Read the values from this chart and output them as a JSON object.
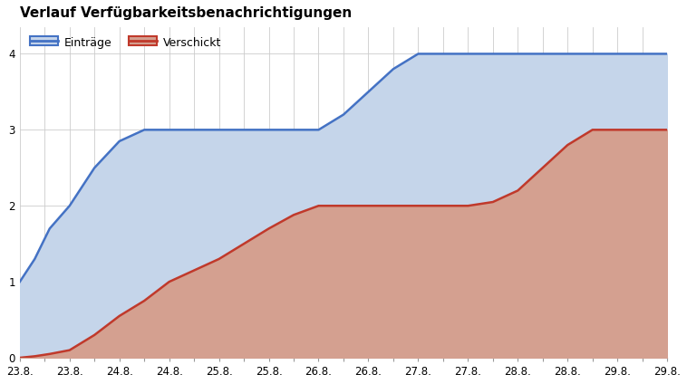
{
  "title": "Verlauf Verfügbarkeitsbenachrichtigungen",
  "series": {
    "Einträge": {
      "x": [
        0,
        0.3,
        0.6,
        1.0,
        1.5,
        2.0,
        2.5,
        3.0,
        3.5,
        4.0,
        4.5,
        5.0,
        5.5,
        6.0,
        6.5,
        7.0,
        7.5,
        8.0,
        8.5,
        9.0,
        9.5,
        10.0,
        10.5,
        11.0,
        11.5,
        12.0,
        12.5,
        13.0
      ],
      "y": [
        1,
        1.3,
        1.7,
        2.0,
        2.5,
        2.85,
        3.0,
        3.0,
        3.0,
        3.0,
        3.0,
        3.0,
        3.0,
        3.0,
        3.2,
        3.5,
        3.8,
        4.0,
        4.0,
        4.0,
        4.0,
        4.0,
        4.0,
        4.0,
        4.0,
        4.0,
        4.0,
        4.0
      ],
      "fill_color": "#c5d5ea",
      "line_color": "#4472c4",
      "line_width": 1.8
    },
    "Verschickt": {
      "x": [
        0,
        0.3,
        0.6,
        1.0,
        1.5,
        2.0,
        2.5,
        3.0,
        3.5,
        4.0,
        4.5,
        5.0,
        5.5,
        6.0,
        6.5,
        7.0,
        7.5,
        8.0,
        8.5,
        9.0,
        9.5,
        10.0,
        10.5,
        11.0,
        11.5,
        12.0,
        12.5,
        13.0
      ],
      "y": [
        0,
        0.02,
        0.05,
        0.1,
        0.3,
        0.55,
        0.75,
        1.0,
        1.15,
        1.3,
        1.5,
        1.7,
        1.88,
        2.0,
        2.0,
        2.0,
        2.0,
        2.0,
        2.0,
        2.0,
        2.05,
        2.2,
        2.5,
        2.8,
        3.0,
        3.0,
        3.0,
        3.0
      ],
      "fill_color": "#d4a090",
      "line_color": "#c0392b",
      "line_width": 1.8
    }
  },
  "xtick_positions": [
    0,
    0.5,
    1.0,
    1.5,
    2.0,
    2.5,
    3.0,
    3.5,
    4.0,
    4.5,
    5.0,
    5.5,
    6.0,
    6.5,
    7.0,
    7.5,
    8.0,
    8.5,
    9.0,
    9.5,
    10.0,
    10.5,
    11.0,
    11.5,
    12.0,
    12.5,
    13.0
  ],
  "xtick_labels": [
    "23.8.",
    "23.8.",
    "23.8.",
    "23.8.",
    "24.8.",
    "24.8.",
    "24.8.",
    "24.8.",
    "25.8.",
    "25.8.",
    "25.8.",
    "25.8.",
    "26.8.",
    "26.8.",
    "26.8.",
    "26.8.",
    "27.8.",
    "27.8.",
    "27.8.",
    "27.8.",
    "28.8.",
    "28.8.",
    "28.8.",
    "28.8.",
    "29.8.",
    "29.8.",
    "29.8."
  ],
  "xtick_show": [
    true,
    false,
    true,
    false,
    true,
    false,
    true,
    false,
    true,
    false,
    true,
    false,
    true,
    false,
    true,
    false,
    true,
    false,
    true,
    false,
    true,
    false,
    true,
    false,
    true,
    false,
    true
  ],
  "ylim": [
    0,
    4.35
  ],
  "yticks": [
    0,
    1,
    2,
    3,
    4
  ],
  "xlim": [
    0,
    13.0
  ],
  "background_color": "#ffffff",
  "grid_color": "#cccccc",
  "title_fontsize": 11,
  "legend_fontsize": 9,
  "tick_fontsize": 8.5
}
